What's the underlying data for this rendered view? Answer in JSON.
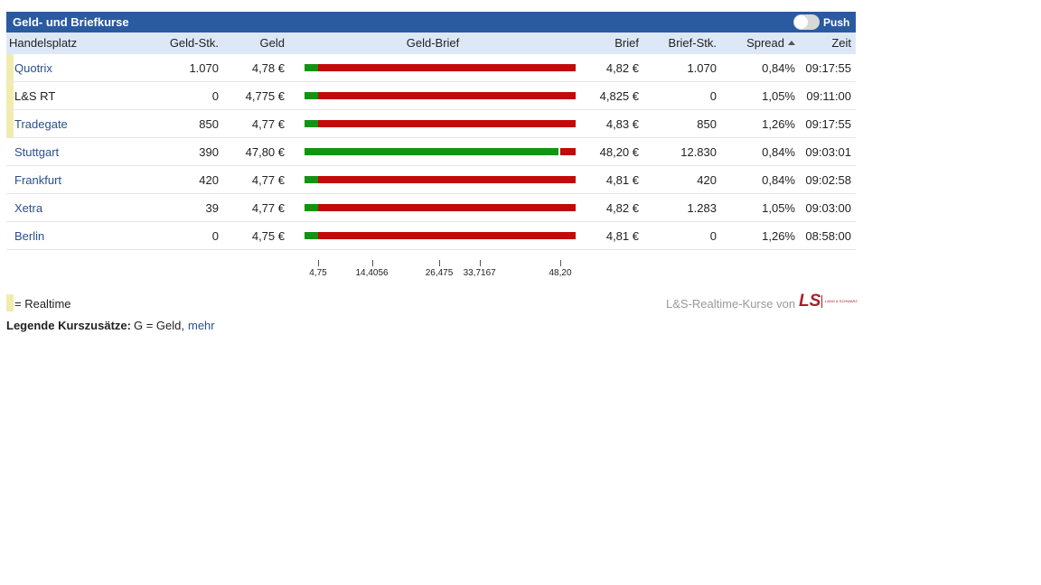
{
  "header": {
    "title": "Geld- und Briefkurse",
    "toggle": "Push"
  },
  "table": {
    "columns": [
      "Handelsplatz",
      "Geld-Stk.",
      "Geld",
      "Geld-Brief",
      "Brief",
      "Brief-Stk.",
      "Spread",
      "Zeit"
    ],
    "sorted_column": 6,
    "rows": [
      {
        "name": "Quotrix",
        "geld_stk": "1.070",
        "geld": "4,78 €",
        "brief": "4,82 €",
        "brief_stk": "1.070",
        "spread": "0,84%",
        "zeit": "09:17:55",
        "realtime": true,
        "link": true
      },
      {
        "name": "L&S RT",
        "geld_stk": "0",
        "geld": "4,775 €",
        "brief": "4,825 €",
        "brief_stk": "0",
        "spread": "1,05%",
        "zeit": "09:11:00",
        "realtime": true,
        "link": false
      },
      {
        "name": "Tradegate",
        "geld_stk": "850",
        "geld": "4,77 €",
        "brief": "4,83 €",
        "brief_stk": "850",
        "spread": "1,26%",
        "zeit": "09:17:55",
        "realtime": true,
        "link": true
      },
      {
        "name": "Stuttgart",
        "geld_stk": "390",
        "geld": "47,80 €",
        "brief": "48,20 €",
        "brief_stk": "12.830",
        "spread": "0,84%",
        "zeit": "09:03:01",
        "realtime": false,
        "link": true
      },
      {
        "name": "Frankfurt",
        "geld_stk": "420",
        "geld": "4,77 €",
        "brief": "4,81 €",
        "brief_stk": "420",
        "spread": "0,84%",
        "zeit": "09:02:58",
        "realtime": false,
        "link": true
      },
      {
        "name": "Xetra",
        "geld_stk": "39",
        "geld": "4,77 €",
        "brief": "4,82 €",
        "brief_stk": "1.283",
        "spread": "1,05%",
        "zeit": "09:03:00",
        "realtime": false,
        "link": true
      },
      {
        "name": "Berlin",
        "geld_stk": "0",
        "geld": "4,75 €",
        "brief": "4,81 €",
        "brief_stk": "0",
        "spread": "1,26%",
        "zeit": "08:58:00",
        "realtime": false,
        "link": true
      }
    ],
    "scale_ticks": [
      "4,75",
      "14,4056",
      "26,475",
      "33,7167",
      "48,20"
    ]
  },
  "legend": {
    "marker_text": "= Realtime",
    "provider": "L&S-Realtime-Kurse von",
    "logo": "LS",
    "logo_sub": "LANG & SCHWARZ",
    "note_label": "Legende Kurszusätze:",
    "note_text": "G = Geld,",
    "note_link": "mehr"
  }
}
